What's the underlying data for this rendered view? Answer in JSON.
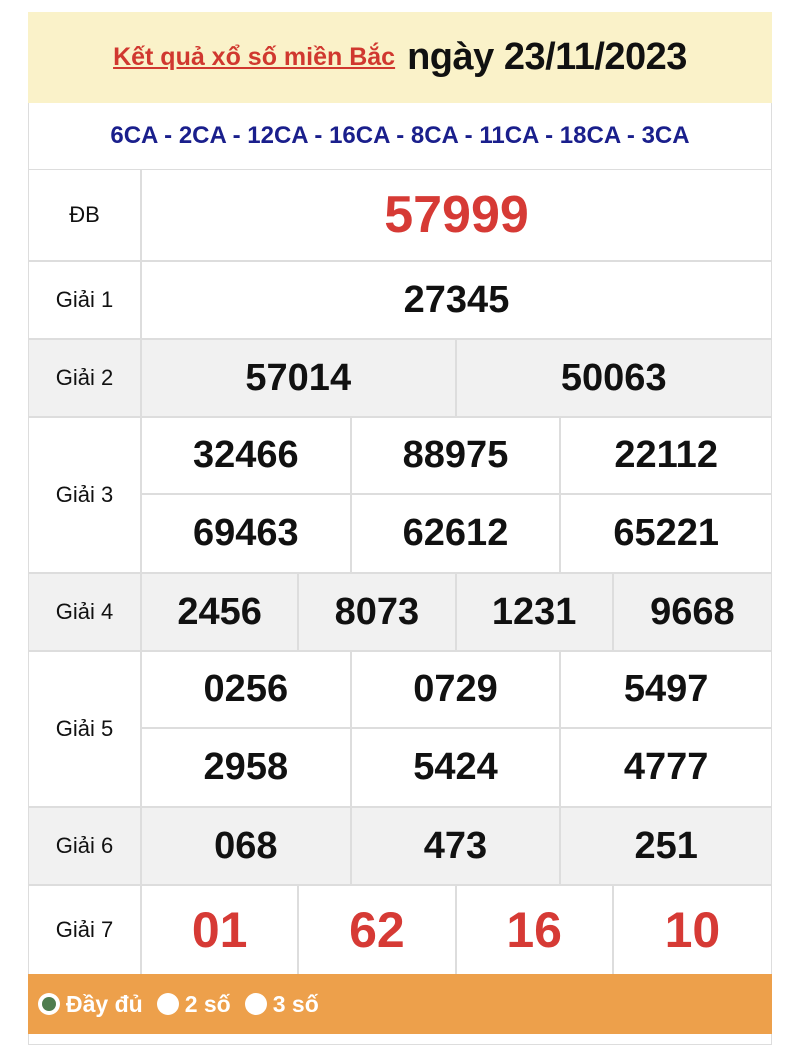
{
  "header": {
    "title_link": "Kết quả xổ số miền Bắc",
    "date": "ngày 23/11/2023"
  },
  "provinces": "6CA - 2CA - 12CA - 16CA - 8CA - 11CA - 18CA - 3CA",
  "prizes": {
    "db": {
      "label": "ĐB",
      "numbers": [
        "57999"
      ]
    },
    "g1": {
      "label": "Giải 1",
      "numbers": [
        "27345"
      ]
    },
    "g2": {
      "label": "Giải 2",
      "numbers": [
        "57014",
        "50063"
      ]
    },
    "g3": {
      "label": "Giải 3",
      "numbers": [
        "32466",
        "88975",
        "22112",
        "69463",
        "62612",
        "65221"
      ]
    },
    "g4": {
      "label": "Giải 4",
      "numbers": [
        "2456",
        "8073",
        "1231",
        "9668"
      ]
    },
    "g5": {
      "label": "Giải 5",
      "numbers": [
        "0256",
        "0729",
        "5497",
        "2958",
        "5424",
        "4777"
      ]
    },
    "g6": {
      "label": "Giải 6",
      "numbers": [
        "068",
        "473",
        "251"
      ]
    },
    "g7": {
      "label": "Giải 7",
      "numbers": [
        "01",
        "62",
        "16",
        "10"
      ]
    }
  },
  "display_options": [
    {
      "label": "Đầy đủ",
      "selected": true
    },
    {
      "label": "2 số",
      "selected": false
    },
    {
      "label": "3 số",
      "selected": false
    }
  ],
  "colors": {
    "accent_red": "#d63a35",
    "province_blue": "#1a1f8c",
    "header_bg": "#faf2c9",
    "options_bar": "#eda04b",
    "radio_selected": "#4e7d4f"
  }
}
